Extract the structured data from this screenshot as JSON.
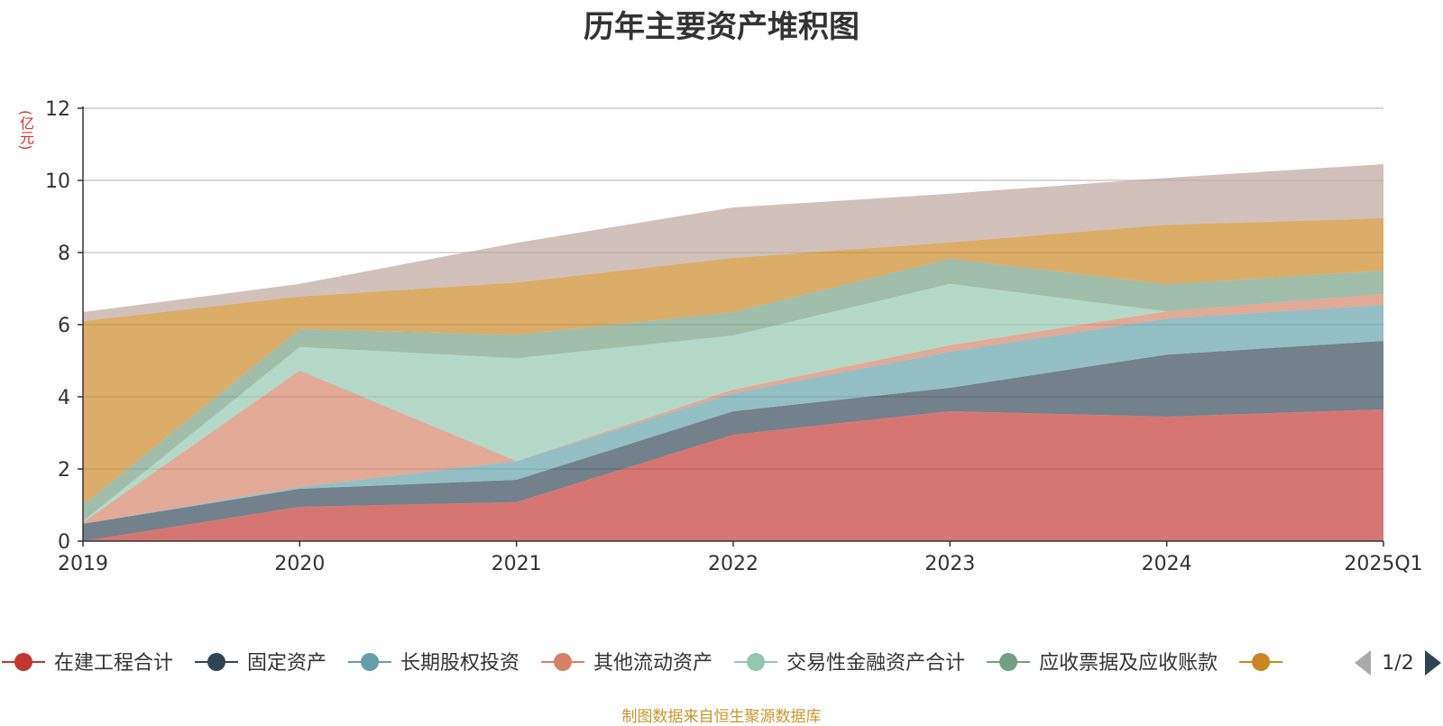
{
  "title": "历年主要资产堆积图",
  "unit_label": "(亿元)",
  "source": "制图数据来自恒生聚源数据库",
  "legend_page": "1/2",
  "chart_data": {
    "type": "area",
    "stacked": true,
    "title": "历年主要资产堆积图",
    "ylabel": "(亿元)",
    "xlabel": "",
    "ylim": [
      0,
      12
    ],
    "yticks": [
      0,
      2,
      4,
      6,
      8,
      10,
      12
    ],
    "grid": true,
    "legend_position": "bottom",
    "categories": [
      "2019",
      "2020",
      "2021",
      "2022",
      "2023",
      "2024",
      "2025Q1"
    ],
    "series": [
      {
        "name": "在建工程合计",
        "color": "#c23531",
        "values": [
          0.0,
          0.95,
          1.08,
          2.95,
          3.6,
          3.45,
          3.65
        ]
      },
      {
        "name": "固定资产",
        "color": "#2f4554",
        "values": [
          0.48,
          0.5,
          0.62,
          0.65,
          0.65,
          1.72,
          1.9
        ]
      },
      {
        "name": "长期股权投资",
        "color": "#61a0a8",
        "values": [
          0.0,
          0.05,
          0.52,
          0.5,
          1.0,
          1.0,
          1.0
        ]
      },
      {
        "name": "其他流动资产",
        "color": "#d48265",
        "values": [
          0.04,
          3.23,
          0.0,
          0.1,
          0.18,
          0.2,
          0.3
        ]
      },
      {
        "name": "交易性金融资产合计",
        "color": "#91c7ae",
        "values": [
          0.03,
          0.65,
          2.85,
          1.5,
          1.7,
          0.0,
          0.0
        ]
      },
      {
        "name": "应收票据及应收账款",
        "color": "#749f83",
        "values": [
          0.45,
          0.5,
          0.65,
          0.65,
          0.7,
          0.75,
          0.65
        ]
      },
      {
        "name": "",
        "color": "#ca8622",
        "values": [
          5.1,
          0.9,
          1.45,
          1.5,
          0.45,
          1.65,
          1.45
        ]
      },
      {
        "name": "",
        "color": "#bda29a",
        "values": [
          0.25,
          0.35,
          1.1,
          1.4,
          1.35,
          1.3,
          1.5
        ]
      }
    ]
  }
}
